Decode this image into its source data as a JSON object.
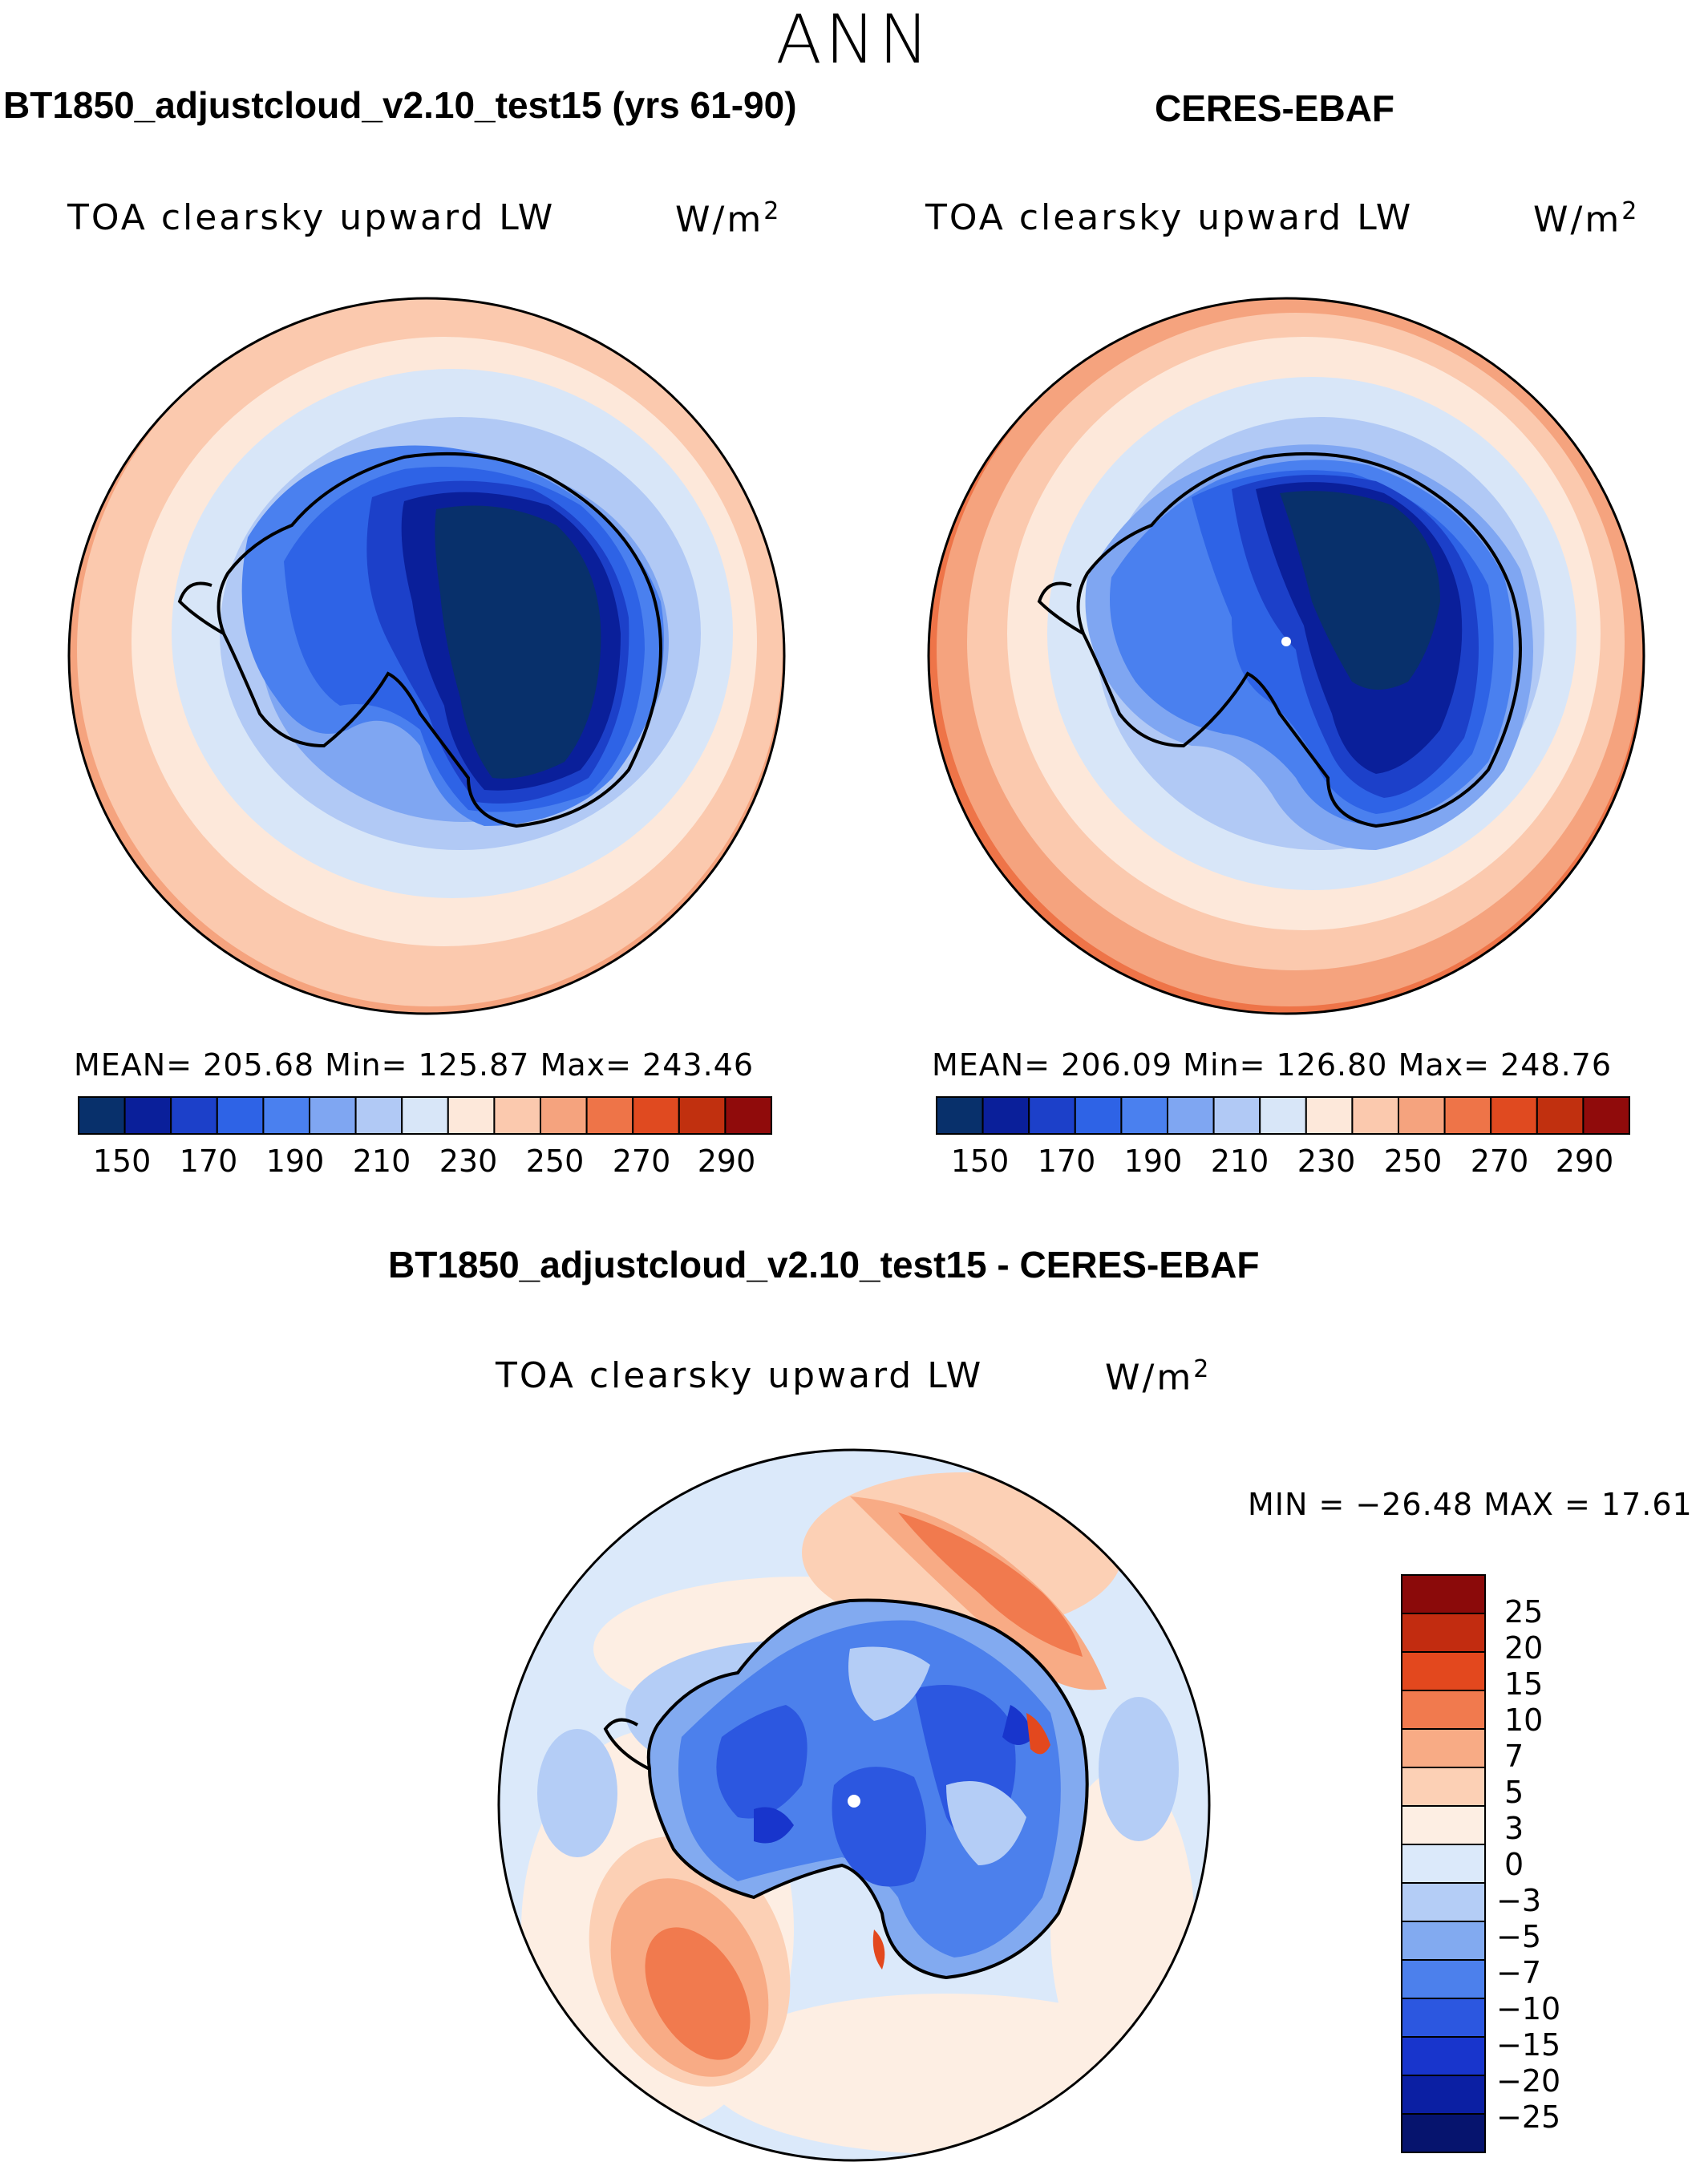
{
  "figure": {
    "season": "ANN",
    "colors": {
      "abs_scale": [
        "#08306b",
        "#0a1f9a",
        "#1c40c9",
        "#2e63e6",
        "#4a80ef",
        "#7fa6f2",
        "#b1c9f5",
        "#d8e6f8",
        "#fde8da",
        "#fbc9ae",
        "#f5a37e",
        "#ee7448",
        "#e04a20",
        "#c1300f",
        "#900b0b"
      ],
      "diff_scale": [
        "#06146e",
        "#0b1fa3",
        "#1835cc",
        "#2c57e0",
        "#4c80ec",
        "#82aaf0",
        "#b4cdf6",
        "#dbe9fa",
        "#fdeee3",
        "#fcd0b5",
        "#f8ab85",
        "#f17a4e",
        "#e3481e",
        "#c22c10",
        "#8b0a0a"
      ]
    },
    "panels": {
      "model": {
        "title": "BT1850_adjustcloud_v2.10_test15 (yrs 61-90)",
        "field": "TOA  clearsky  upward  LW",
        "units": "W/m",
        "units_exp": "2",
        "stats": "MEAN=  205.68    Min=  125.87    Max=  243.46",
        "ticks": [
          "150",
          "170",
          "190",
          "210",
          "230",
          "250",
          "270",
          "290"
        ]
      },
      "obs": {
        "title": "CERES-EBAF",
        "field": "TOA  clearsky  upward  LW",
        "units": "W/m",
        "units_exp": "2",
        "stats": "MEAN=  206.09    Min=  126.80    Max=  248.76",
        "ticks": [
          "150",
          "170",
          "190",
          "210",
          "230",
          "250",
          "270",
          "290"
        ]
      },
      "diff": {
        "title": "BT1850_adjustcloud_v2.10_test15 - CERES-EBAF",
        "field": "TOA  clearsky  upward  LW",
        "units": "W/m",
        "units_exp": "2",
        "stats": "MIN  =  −26.48  MAX  =    17.61",
        "ticks": [
          "25",
          "20",
          "15",
          "10",
          "7",
          "5",
          "3",
          "0",
          "−3",
          "−5",
          "−7",
          "−10",
          "−15",
          "−20",
          "−25"
        ]
      }
    }
  }
}
